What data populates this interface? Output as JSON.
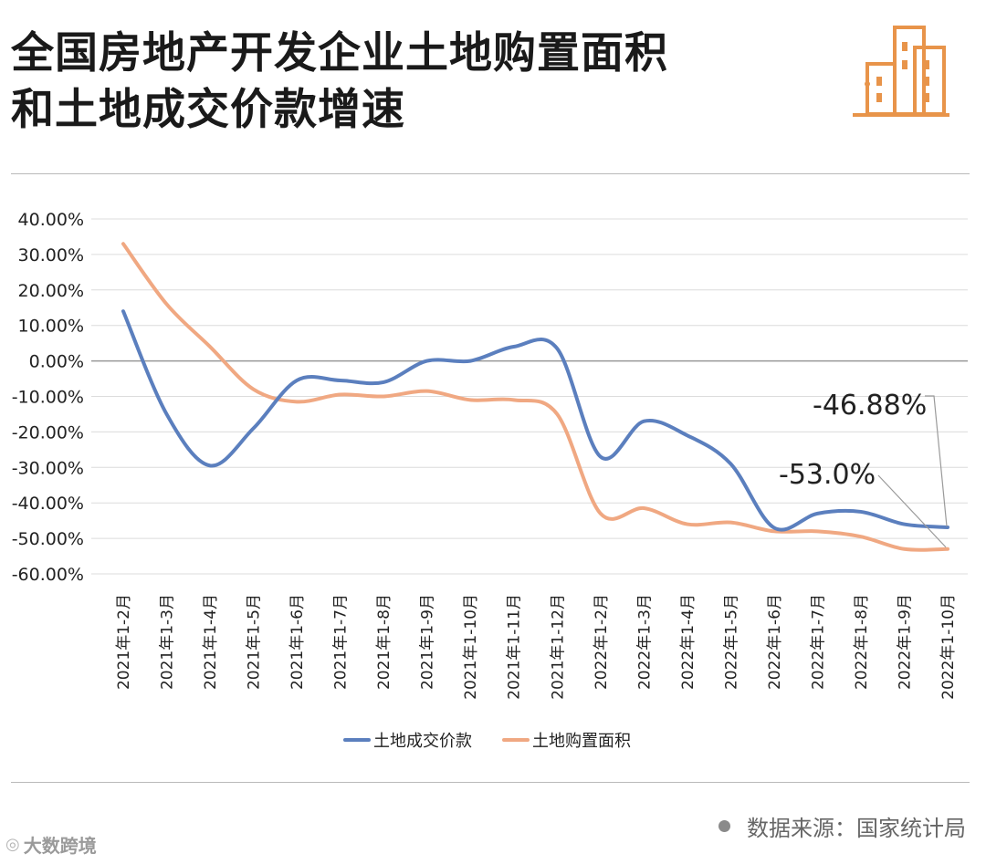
{
  "header": {
    "title_line1": "全国房地产开发企业土地购置面积",
    "title_line2": "和土地成交价款增速",
    "logo_icon": "city-buildings-icon",
    "logo_color": "#e8944a"
  },
  "footer": {
    "source": "数据来源：国家统计局",
    "brand": "大数跨境"
  },
  "chart_data": {
    "type": "line",
    "categories": [
      "2021年1-2月",
      "2021年1-3月",
      "2021年1-4月",
      "2021年1-5月",
      "2021年1-6月",
      "2021年1-7月",
      "2021年1-8月",
      "2021年1-9月",
      "2021年1-10月",
      "2021年1-11月",
      "2021年1-12月",
      "2022年1-2月",
      "2022年1-3月",
      "2022年1-4月",
      "2022年1-5月",
      "2022年1-6月",
      "2022年1-7月",
      "2022年1-8月",
      "2022年1-9月",
      "2022年1-10月"
    ],
    "series": [
      {
        "name": "土地成交价款",
        "color": "#5b7fbe",
        "values": [
          14,
          -15,
          -29.5,
          -19,
          -5.5,
          -5.5,
          -6,
          0,
          0,
          4,
          3.5,
          -27,
          -17,
          -21,
          -29,
          -47,
          -43,
          -42.5,
          -46,
          -46.88
        ]
      },
      {
        "name": "土地购置面积",
        "color": "#f0a882",
        "values": [
          33,
          16,
          4,
          -8,
          -11.5,
          -9.5,
          -10,
          -8.5,
          -11,
          -11,
          -15,
          -43,
          -41.5,
          -46,
          -45.5,
          -48,
          -48,
          -49.5,
          -53,
          -53.0
        ]
      }
    ],
    "ylim": [
      -60,
      40
    ],
    "yticks": [
      40,
      30,
      20,
      10,
      0,
      -10,
      -20,
      -30,
      -40,
      -50,
      -60
    ],
    "ytick_labels": [
      "40.00%",
      "30.00%",
      "20.00%",
      "10.00%",
      "0.00%",
      "-10.00%",
      "-20.00%",
      "-30.00%",
      "-40.00%",
      "-50.00%",
      "-60.00%"
    ],
    "annotations": [
      {
        "text": "-46.88%",
        "series": 0,
        "index": 19
      },
      {
        "text": "-53.0%",
        "series": 1,
        "index": 19
      }
    ],
    "grid": true,
    "legend_position": "bottom-center"
  }
}
